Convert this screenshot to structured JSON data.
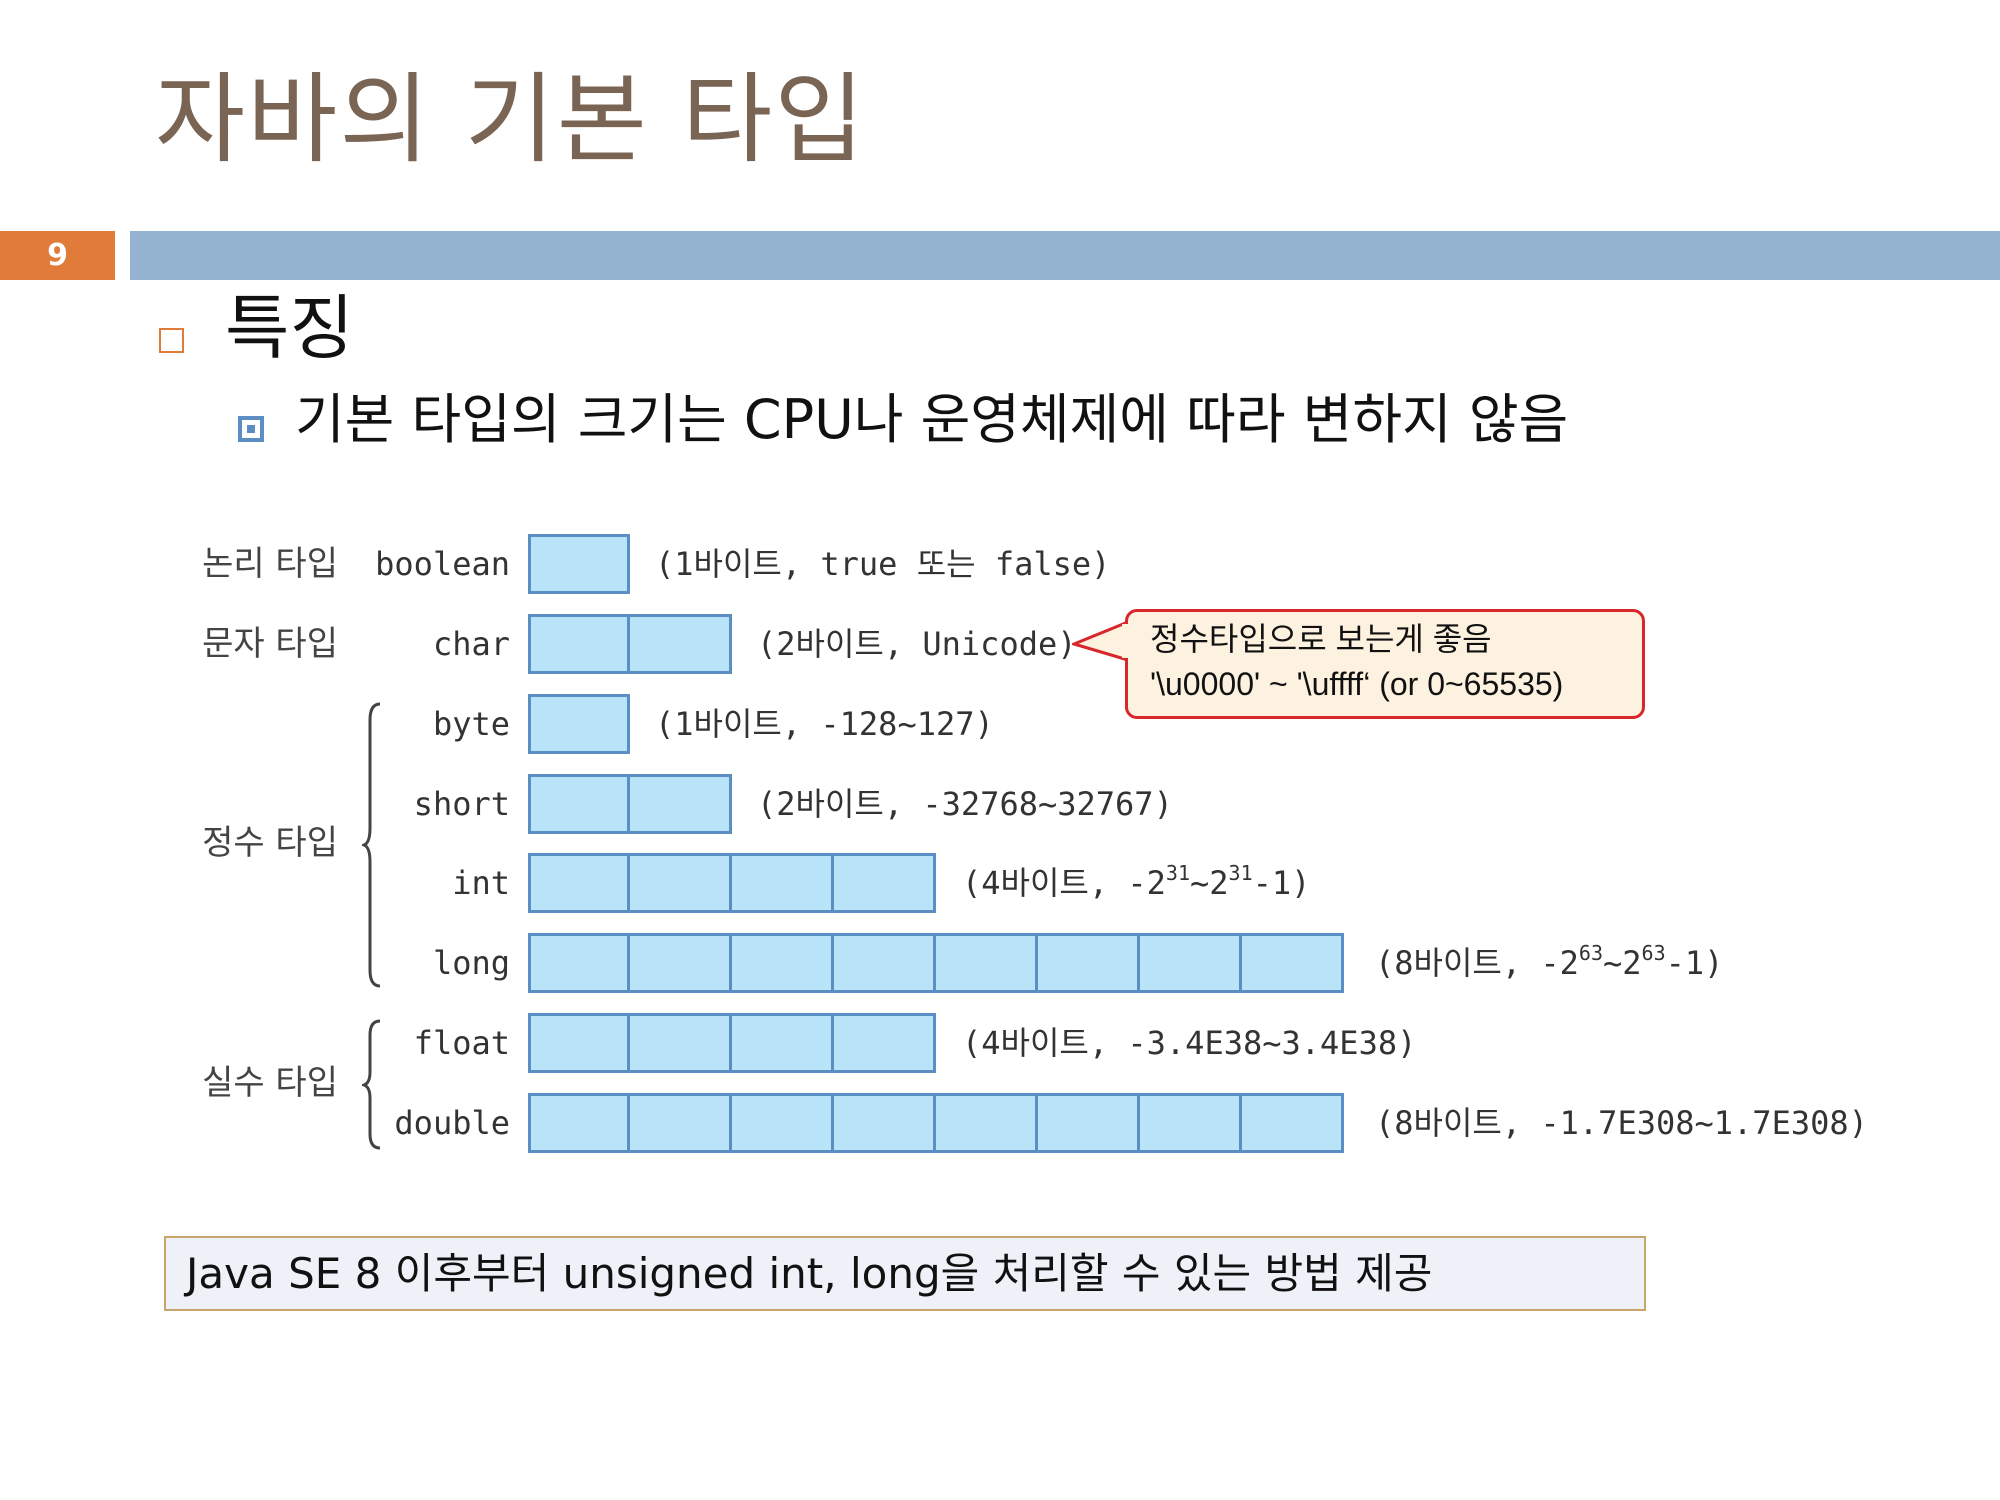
{
  "slide": {
    "title": "자바의 기본 타입",
    "page_number": "9"
  },
  "bullets": {
    "level1": "특징",
    "level2": "기본 타입의 크기는 CPU나 운영체제에 따라 변하지 않음"
  },
  "diagram": {
    "categories": {
      "logical": "논리 타입",
      "char": "문자 타입",
      "integer": "정수 타입",
      "real": "실수 타입"
    },
    "types": [
      {
        "name": "boolean",
        "bytes": 1,
        "desc": "(1바이트, true 또는 false)"
      },
      {
        "name": "char",
        "bytes": 2,
        "desc": "(2바이트, Unicode)"
      },
      {
        "name": "byte",
        "bytes": 1,
        "desc": "(1바이트, -128~127)"
      },
      {
        "name": "short",
        "bytes": 2,
        "desc": "(2바이트, -32768~32767)"
      },
      {
        "name": "int",
        "bytes": 4,
        "desc_pre": "(4바이트, -2",
        "exp1": "31",
        "desc_mid": "~2",
        "exp2": "31",
        "desc_post": "-1)"
      },
      {
        "name": "long",
        "bytes": 8,
        "desc_pre": "(8바이트, -2",
        "exp1": "63",
        "desc_mid": "~2",
        "exp2": "63",
        "desc_post": "-1)"
      },
      {
        "name": "float",
        "bytes": 4,
        "desc": "(4바이트, -3.4E38~3.4E38)"
      },
      {
        "name": "double",
        "bytes": 8,
        "desc": "(8바이트, -1.7E308~1.7E308)"
      }
    ],
    "callout": {
      "line1": "정수타입으로 보는게 좋음",
      "line2": "'\\u0000' ~ '\\uffff‘ (or 0~65535)"
    }
  },
  "note": "Java SE 8 이후부터 unsigned int, long을 처리할 수 있는 방법 제공",
  "colors": {
    "title": "#7a6454",
    "accent_orange": "#e07b39",
    "bar_blue": "#94b3d0",
    "cell_fill": "#b9e3f8",
    "cell_border": "#5b8fc4",
    "callout_border": "#d8262a"
  }
}
